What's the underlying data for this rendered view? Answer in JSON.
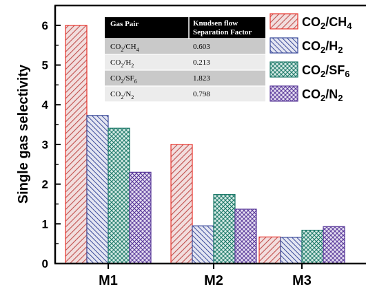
{
  "chart_data": {
    "type": "bar",
    "ylabel": "Single gas selectivity",
    "xlabel": "",
    "ylim": [
      0,
      6.5
    ],
    "yticks": [
      0,
      1,
      2,
      3,
      4,
      5,
      6
    ],
    "categories": [
      "M1",
      "M2",
      "M3"
    ],
    "series": [
      {
        "name": "CO2/CH4",
        "display": [
          "CO",
          "2",
          "/CH",
          "4"
        ],
        "color": "#e8332b",
        "fill": "#c97a7a",
        "values": [
          6.0,
          3.0,
          0.67
        ]
      },
      {
        "name": "CO2/H2",
        "display": [
          "CO",
          "2",
          "/H",
          "2"
        ],
        "color": "#3a4a9a",
        "fill": "#8a90b8",
        "values": [
          3.73,
          0.95,
          0.66
        ]
      },
      {
        "name": "CO2/SF6",
        "display": [
          "CO",
          "2",
          "/SF",
          "6"
        ],
        "color": "#1e7a6a",
        "fill": "#6aa89a",
        "values": [
          3.41,
          1.74,
          0.84
        ]
      },
      {
        "name": "CO2/N2",
        "display": [
          "CO",
          "2",
          "/N",
          "2"
        ],
        "color": "#5a3a9a",
        "fill": "#9a86c0",
        "values": [
          2.3,
          1.37,
          0.93
        ]
      }
    ],
    "legend_position": "top-right",
    "grid": false
  },
  "table": {
    "headers": [
      "Gas Pair",
      "Knudsen flow",
      "Separation Factor"
    ],
    "rows": [
      {
        "pair": [
          "CO",
          "2",
          "/CH",
          "4"
        ],
        "value": "0.603"
      },
      {
        "pair": [
          "CO",
          "2",
          "/H",
          "2"
        ],
        "value": "0.213"
      },
      {
        "pair": [
          "CO",
          "2",
          "/SF",
          "6"
        ],
        "value": "1.823"
      },
      {
        "pair": [
          "CO",
          "2",
          "/N",
          "2"
        ],
        "value": "0.798"
      }
    ]
  }
}
